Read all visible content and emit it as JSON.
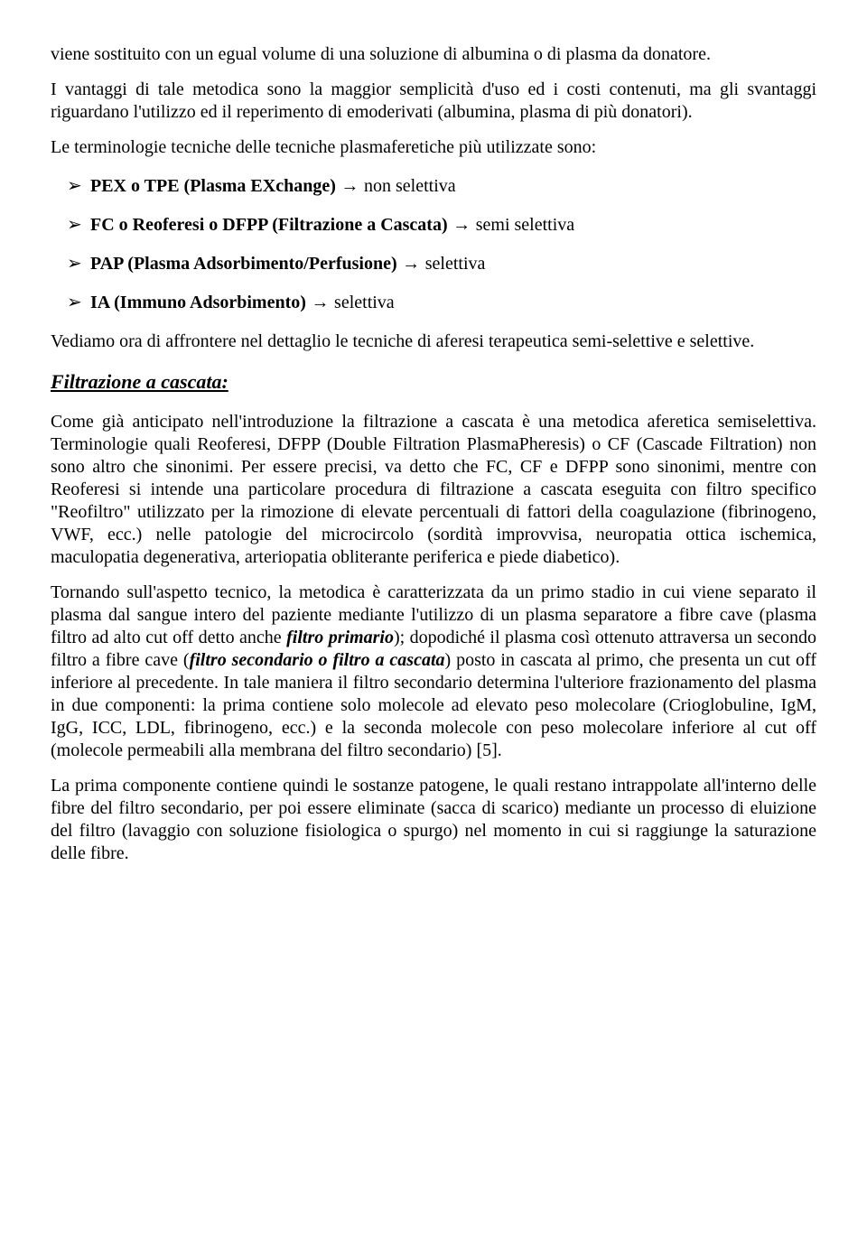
{
  "p1": "viene sostituito con un egual volume di una soluzione di albumina o di plasma da donatore.",
  "p2": "I vantaggi di tale metodica sono la maggior semplicità d'uso ed i costi contenuti, ma gli svantaggi riguardano l'utilizzo ed il reperimento di emoderivati (albumina, plasma di più donatori).",
  "p3": "Le terminologie tecniche delle tecniche plasmaferetiche più utilizzate sono:",
  "list": [
    {
      "bold": "PEX o TPE (Plasma EXchange)",
      "arrow": " → ",
      "rest": "non selettiva"
    },
    {
      "bold": "FC o Reoferesi o DFPP (Filtrazione a Cascata)",
      "arrow": " → ",
      "rest": "semi selettiva"
    },
    {
      "bold": "PAP (Plasma Adsorbimento/Perfusione)",
      "arrow": " → ",
      "rest": "selettiva"
    },
    {
      "bold": "IA (Immuno Adsorbimento)",
      "arrow": " → ",
      "rest": "selettiva"
    }
  ],
  "p4": "Vediamo ora di affrontere nel dettaglio le tecniche di aferesi terapeutica semi-selettive e selettive.",
  "h1": "Filtrazione a cascata:",
  "p5_a": "Come già anticipato nell'introduzione la filtrazione a cascata è una metodica aferetica semiselettiva. Terminologie quali Reoferesi, DFPP (Double Filtration PlasmaPheresis) o CF (Cascade Filtration) non sono altro che sinonimi. Per essere precisi, va detto che FC, CF e DFPP sono sinonimi, mentre con Reoferesi si intende una particolare procedura di filtrazione a cascata eseguita con filtro specifico \"Reofiltro\" utilizzato per la rimozione di elevate percentuali di fattori della coagulazione (fibrinogeno, VWF, ecc.) nelle patologie del microcircolo (sordità improvvisa, neuropatia ottica ischemica, maculopatia degenerativa, arteriopatia obliterante periferica e piede diabetico).",
  "p5_b1": "Tornando sull'aspetto tecnico, la metodica è caratterizzata da un primo stadio in cui viene separato il plasma dal sangue intero del paziente mediante l'utilizzo di un plasma separatore a fibre cave (plasma filtro ad alto cut off detto anche ",
  "p5_b2": "filtro primario",
  "p5_b3": "); dopodiché il plasma così ottenuto attraversa un secondo filtro a fibre cave (",
  "p5_b4": "filtro secondario o filtro a cascata",
  "p5_b5": ") posto in cascata al primo, che presenta un cut off inferiore al precedente. In tale maniera il filtro secondario determina l'ulteriore frazionamento del plasma in due componenti: la prima contiene solo molecole ad elevato peso molecolare (Crioglobuline, IgM, IgG, ICC, LDL, fibrinogeno, ecc.) e la seconda molecole con peso molecolare inferiore al cut off (molecole permeabili alla membrana del filtro secondario) [5].",
  "p5_c": "La prima componente contiene quindi le sostanze patogene, le quali restano intrappolate all'interno delle fibre del filtro secondario, per poi essere eliminate (sacca di scarico) mediante un processo di eluizione del filtro (lavaggio con soluzione fisiologica o spurgo) nel momento in cui si raggiunge la saturazione delle fibre."
}
